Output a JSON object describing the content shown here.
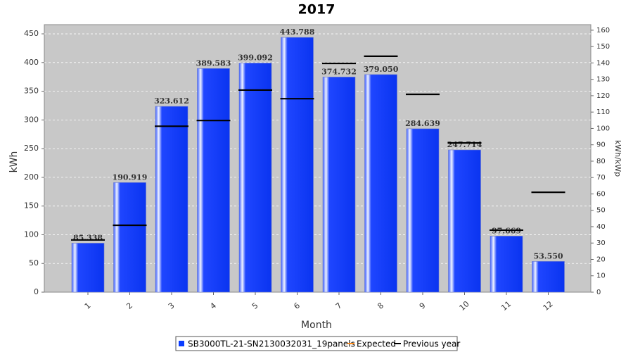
{
  "chart_data": {
    "type": "bar",
    "title": "2017",
    "x_label": "Month",
    "y_label": "kWh",
    "y2_label": "kWh/kWp",
    "categories": [
      "1",
      "2",
      "3",
      "4",
      "5",
      "6",
      "7",
      "8",
      "9",
      "10",
      "11",
      "12"
    ],
    "series": [
      {
        "name": "SB3000TL-21-SN2130032031_19panels",
        "color": "#0a3cff",
        "values": [
          85.338,
          190.919,
          323.612,
          389.583,
          399.092,
          443.788,
          374.732,
          379.05,
          284.639,
          247.714,
          97.669,
          53.55
        ],
        "value_labels": [
          "85.338",
          "190.919",
          "323.612",
          "389.583",
          "399.092",
          "443.788",
          "374.732",
          "379.050",
          "284.639",
          "247.714",
          "97.669",
          "53.550"
        ]
      },
      {
        "name": "Expected",
        "color": "#ff8c1a",
        "values": [
          null,
          null,
          null,
          null,
          null,
          null,
          null,
          null,
          null,
          null,
          null,
          null
        ]
      },
      {
        "name": "Previous year",
        "color": "#000000",
        "values": [
          91,
          116.5,
          289,
          299,
          352,
          337,
          398.5,
          411,
          344.6,
          260,
          108,
          174
        ]
      }
    ],
    "ylim": [
      0,
      466
    ],
    "yticks": [
      0,
      50,
      100,
      150,
      200,
      250,
      300,
      350,
      400,
      450
    ],
    "y2lim": [
      0,
      163.4
    ],
    "y2ticks": [
      0,
      10,
      20,
      30,
      40,
      50,
      60,
      70,
      80,
      90,
      100,
      110,
      120,
      130,
      140,
      150,
      160
    ],
    "grid": true,
    "legend": "bottom"
  }
}
